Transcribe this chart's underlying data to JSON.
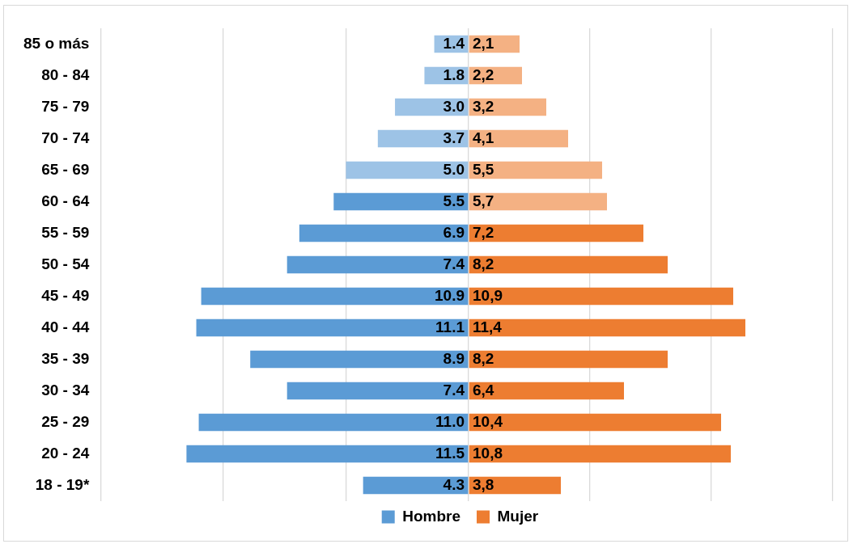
{
  "chart_data": [
    {
      "type": "bar",
      "orientation": "horizontal",
      "categories": [
        "85 o más",
        "80 - 84",
        "75 - 79",
        "70 - 74",
        "65 - 69",
        "60 - 64",
        "55 - 59",
        "50 - 54",
        "45 - 49",
        "40 - 44",
        "35 - 39",
        "30 - 34",
        "25 - 29",
        "20 - 24",
        "18 - 19*"
      ],
      "series": [
        {
          "name": "Hombre",
          "color": "#5b9bd5",
          "colors": [
            "#9dc3e6",
            "#9dc3e6",
            "#9dc3e6",
            "#9dc3e6",
            "#9dc3e6",
            "#5b9bd5",
            "#5b9bd5",
            "#5b9bd5",
            "#5b9bd5",
            "#5b9bd5",
            "#5b9bd5",
            "#5b9bd5",
            "#5b9bd5",
            "#5b9bd5",
            "#5b9bd5"
          ],
          "values": [
            1.4,
            1.8,
            3.0,
            3.7,
            5.0,
            5.5,
            6.9,
            7.4,
            10.9,
            11.1,
            8.9,
            7.4,
            11.0,
            11.5,
            4.3
          ],
          "value_labels": [
            "1.4",
            "1.8",
            "3.0",
            "3.7",
            "5.0",
            "5.5",
            "6.9",
            "7.4",
            "10.9",
            "11.1",
            "8.9",
            "7.4",
            "11.0",
            "11.5",
            "4.3"
          ]
        }
      ],
      "xlim": [
        15,
        0
      ],
      "xticks": [
        {
          "value": 15,
          "label": null
        },
        {
          "value": 10,
          "label": null
        },
        {
          "value": 5,
          "label": null
        },
        {
          "value": 0,
          "label": null
        }
      ],
      "tick_labels": "y",
      "grid": "x",
      "legend": "bottom"
    },
    {
      "type": "bar",
      "orientation": "horizontal",
      "categories": [
        null,
        null,
        null,
        null,
        null,
        null,
        null,
        null,
        null,
        null,
        null,
        null,
        null,
        null,
        null
      ],
      "series": [
        {
          "name": "Mujer",
          "color": "#ed7d31",
          "colors": [
            "#f4b183",
            "#f4b183",
            "#f4b183",
            "#f4b183",
            "#f4b183",
            "#f4b183",
            "#ed7d31",
            "#ed7d31",
            "#ed7d31",
            "#ed7d31",
            "#ed7d31",
            "#ed7d31",
            "#ed7d31",
            "#ed7d31",
            "#ed7d31"
          ],
          "values": [
            2.1,
            2.2,
            3.2,
            4.1,
            5.5,
            5.7,
            7.2,
            8.2,
            10.9,
            11.4,
            8.2,
            6.4,
            10.4,
            10.8,
            3.8
          ],
          "value_labels": [
            "2,1",
            "2,2",
            "3,2",
            "4,1",
            "5,5",
            "5,7",
            "7,2",
            "8,2",
            "10,9",
            "11,4",
            "8,2",
            "6,4",
            "10,4",
            "10,8",
            "3,8"
          ]
        }
      ],
      "xlim": [
        0,
        15
      ],
      "xticks": [
        {
          "value": 0,
          "label": null
        },
        {
          "value": 5,
          "label": null
        },
        {
          "value": 10,
          "label": null
        },
        {
          "value": 15,
          "label": null
        }
      ],
      "tick_labels": false,
      "grid": "x",
      "legend": "bottom"
    }
  ]
}
